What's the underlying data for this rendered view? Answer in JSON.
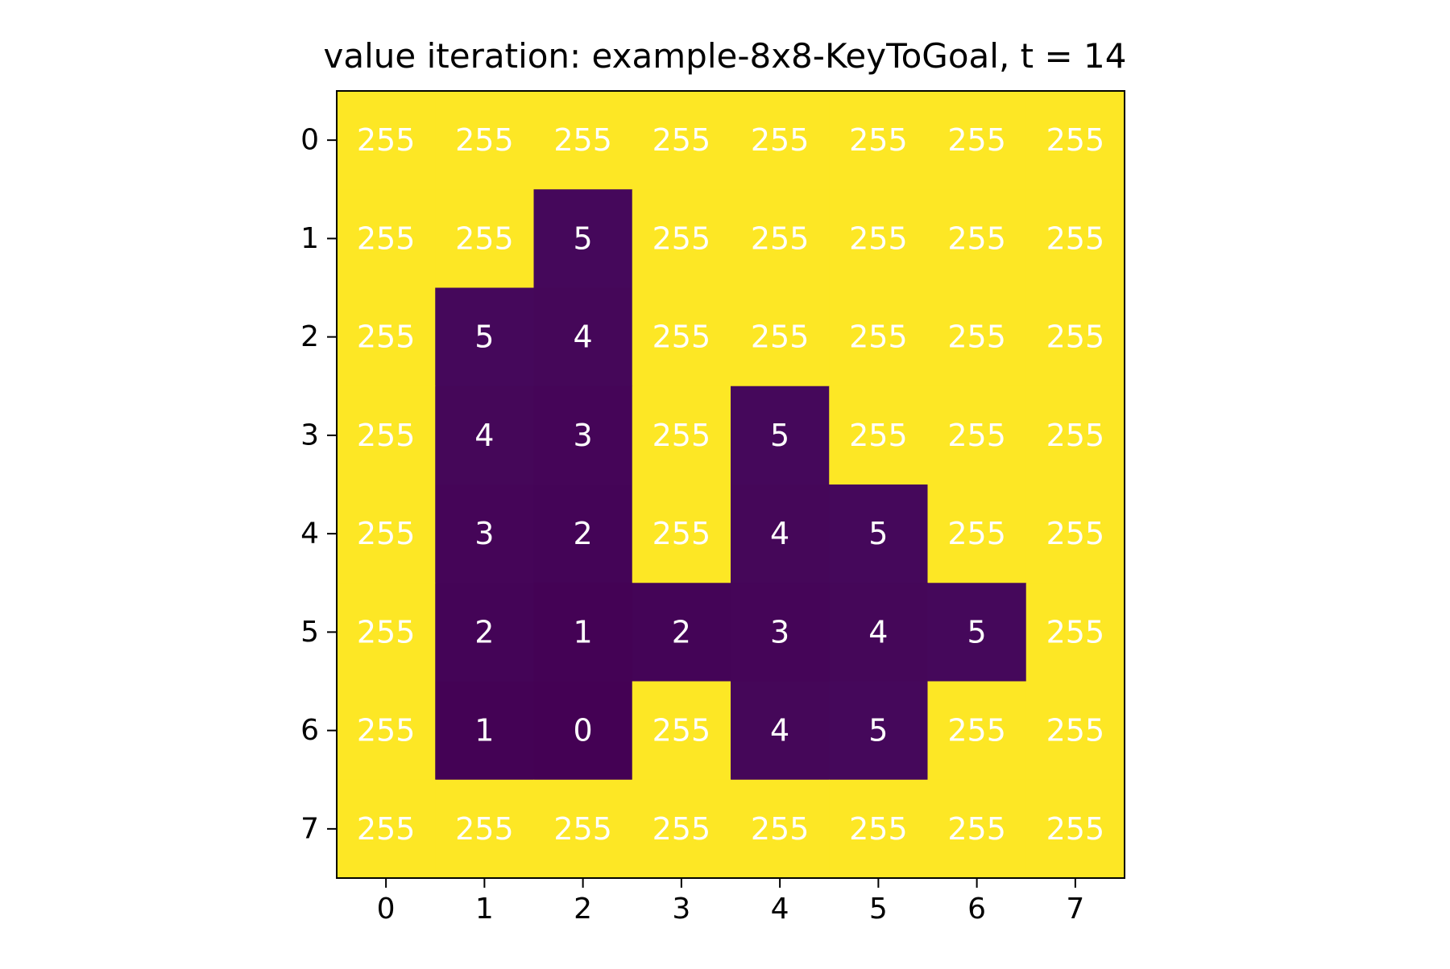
{
  "chart_data": {
    "type": "heatmap",
    "title": "value iteration: example-8x8-KeyToGoal, t = 14",
    "xlabel": "",
    "ylabel": "",
    "x_ticks": [
      "0",
      "1",
      "2",
      "3",
      "4",
      "5",
      "6",
      "7"
    ],
    "y_ticks": [
      "0",
      "1",
      "2",
      "3",
      "4",
      "5",
      "6",
      "7"
    ],
    "colormap": "viridis",
    "vmin": 0,
    "vmax": 255,
    "colors": {
      "high": "#fde725",
      "low": "#440154",
      "cell_text": "#ffffff",
      "axis": "#000000"
    },
    "grid": false,
    "values": [
      [
        255,
        255,
        255,
        255,
        255,
        255,
        255,
        255
      ],
      [
        255,
        255,
        5,
        255,
        255,
        255,
        255,
        255
      ],
      [
        255,
        5,
        4,
        255,
        255,
        255,
        255,
        255
      ],
      [
        255,
        4,
        3,
        255,
        5,
        255,
        255,
        255
      ],
      [
        255,
        3,
        2,
        255,
        4,
        5,
        255,
        255
      ],
      [
        255,
        2,
        1,
        2,
        3,
        4,
        5,
        255
      ],
      [
        255,
        1,
        0,
        255,
        4,
        5,
        255,
        255
      ],
      [
        255,
        255,
        255,
        255,
        255,
        255,
        255,
        255
      ]
    ]
  }
}
